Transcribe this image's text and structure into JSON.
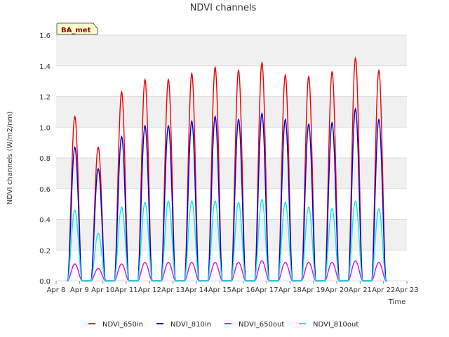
{
  "chart_data": {
    "type": "line",
    "title": "NDVI channels",
    "xlabel": "Time",
    "ylabel": "NDVI channels (W/m2/nm)",
    "ylim": [
      0,
      1.6
    ],
    "yticks": [
      "0.0",
      "0.2",
      "0.4",
      "0.6",
      "0.8",
      "1.0",
      "1.2",
      "1.4",
      "1.6"
    ],
    "xlim": [
      8,
      23
    ],
    "xticks": [
      "Apr 8",
      "Apr 9",
      "Apr 10",
      "Apr 11",
      "Apr 12",
      "Apr 13",
      "Apr 14",
      "Apr 15",
      "Apr 16",
      "Apr 17",
      "Apr 18",
      "Apr 19",
      "Apr 20",
      "Apr 21",
      "Apr 22",
      "Apr 23"
    ],
    "grid": true,
    "legend_position": "bottom",
    "annotation": "BA_met",
    "series": [
      {
        "name": "NDVI_650in",
        "color": "#ee0000",
        "daily_peaks": [
          1.07,
          0.87,
          1.23,
          1.31,
          1.31,
          1.35,
          1.39,
          1.37,
          1.42,
          1.34,
          1.33,
          1.36,
          1.45,
          1.37
        ]
      },
      {
        "name": "NDVI_810in",
        "color": "#0000dd",
        "daily_peaks": [
          0.87,
          0.73,
          0.94,
          1.01,
          1.01,
          1.04,
          1.07,
          1.05,
          1.09,
          1.05,
          1.02,
          1.03,
          1.12,
          1.05
        ]
      },
      {
        "name": "NDVI_650out",
        "color": "#ee00ee",
        "daily_peaks": [
          0.11,
          0.08,
          0.11,
          0.12,
          0.12,
          0.12,
          0.12,
          0.12,
          0.13,
          0.12,
          0.12,
          0.12,
          0.13,
          0.12
        ]
      },
      {
        "name": "NDVI_810out",
        "color": "#00eeee",
        "daily_peaks": [
          0.46,
          0.31,
          0.48,
          0.51,
          0.52,
          0.52,
          0.52,
          0.51,
          0.53,
          0.51,
          0.48,
          0.47,
          0.52,
          0.47
        ]
      }
    ],
    "day_starts": [
      8.5,
      9.5,
      10.5,
      11.5,
      12.5,
      13.5,
      14.5,
      15.5,
      16.5,
      17.5,
      18.5,
      19.5,
      20.5,
      21.5
    ]
  }
}
